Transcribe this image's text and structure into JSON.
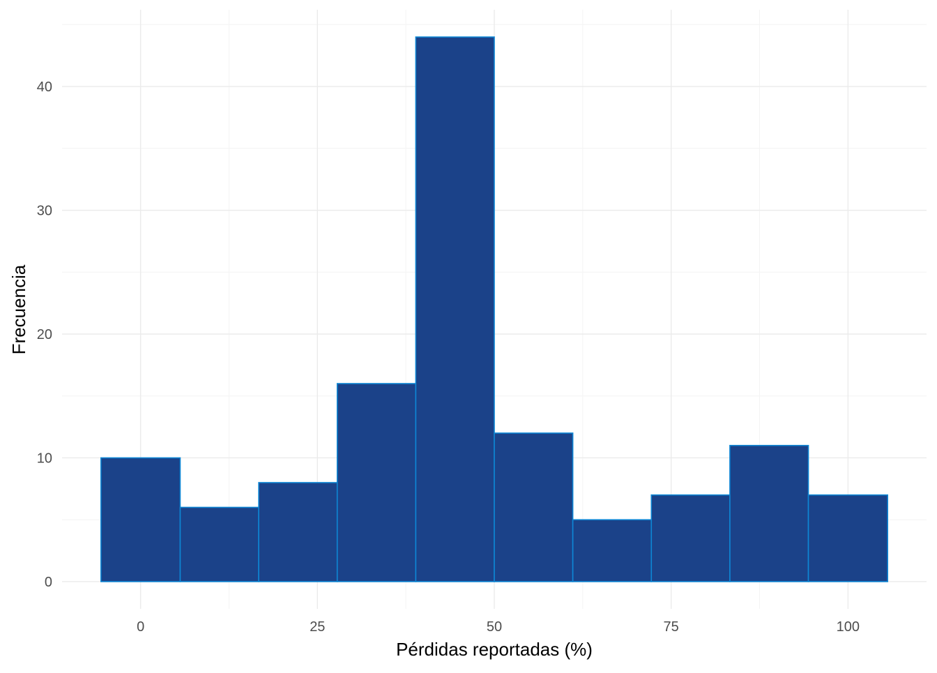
{
  "chart_data": {
    "type": "bar",
    "subtype": "histogram",
    "title": "",
    "xlabel": "Pérdidas reportadas (%)",
    "ylabel": "Frecuencia",
    "xlim": [
      -11.1,
      111.1
    ],
    "ylim": [
      -2.2,
      46.2
    ],
    "x_ticks": [
      0,
      25,
      50,
      75,
      100
    ],
    "x_tick_labels": [
      "0",
      "25",
      "50",
      "75",
      "100"
    ],
    "y_ticks": [
      0,
      10,
      20,
      30,
      40
    ],
    "y_tick_labels": [
      "0",
      "10",
      "20",
      "30",
      "40"
    ],
    "grid": true,
    "legend": "none",
    "bins": [
      {
        "x0": -5.6,
        "x1": 5.6,
        "count": 10
      },
      {
        "x0": 5.6,
        "x1": 16.7,
        "count": 6
      },
      {
        "x0": 16.7,
        "x1": 27.8,
        "count": 8
      },
      {
        "x0": 27.8,
        "x1": 38.9,
        "count": 16
      },
      {
        "x0": 38.9,
        "x1": 50.0,
        "count": 44
      },
      {
        "x0": 50.0,
        "x1": 61.1,
        "count": 12
      },
      {
        "x0": 61.1,
        "x1": 72.2,
        "count": 5
      },
      {
        "x0": 72.2,
        "x1": 83.3,
        "count": 7
      },
      {
        "x0": 83.3,
        "x1": 94.4,
        "count": 11
      },
      {
        "x0": 94.4,
        "x1": 105.6,
        "count": 7
      }
    ],
    "colors": {
      "fill": "#1b4289",
      "stroke": "#0e86d4",
      "grid_major": "#ebebeb",
      "grid_minor": "#f4f4f4"
    }
  }
}
